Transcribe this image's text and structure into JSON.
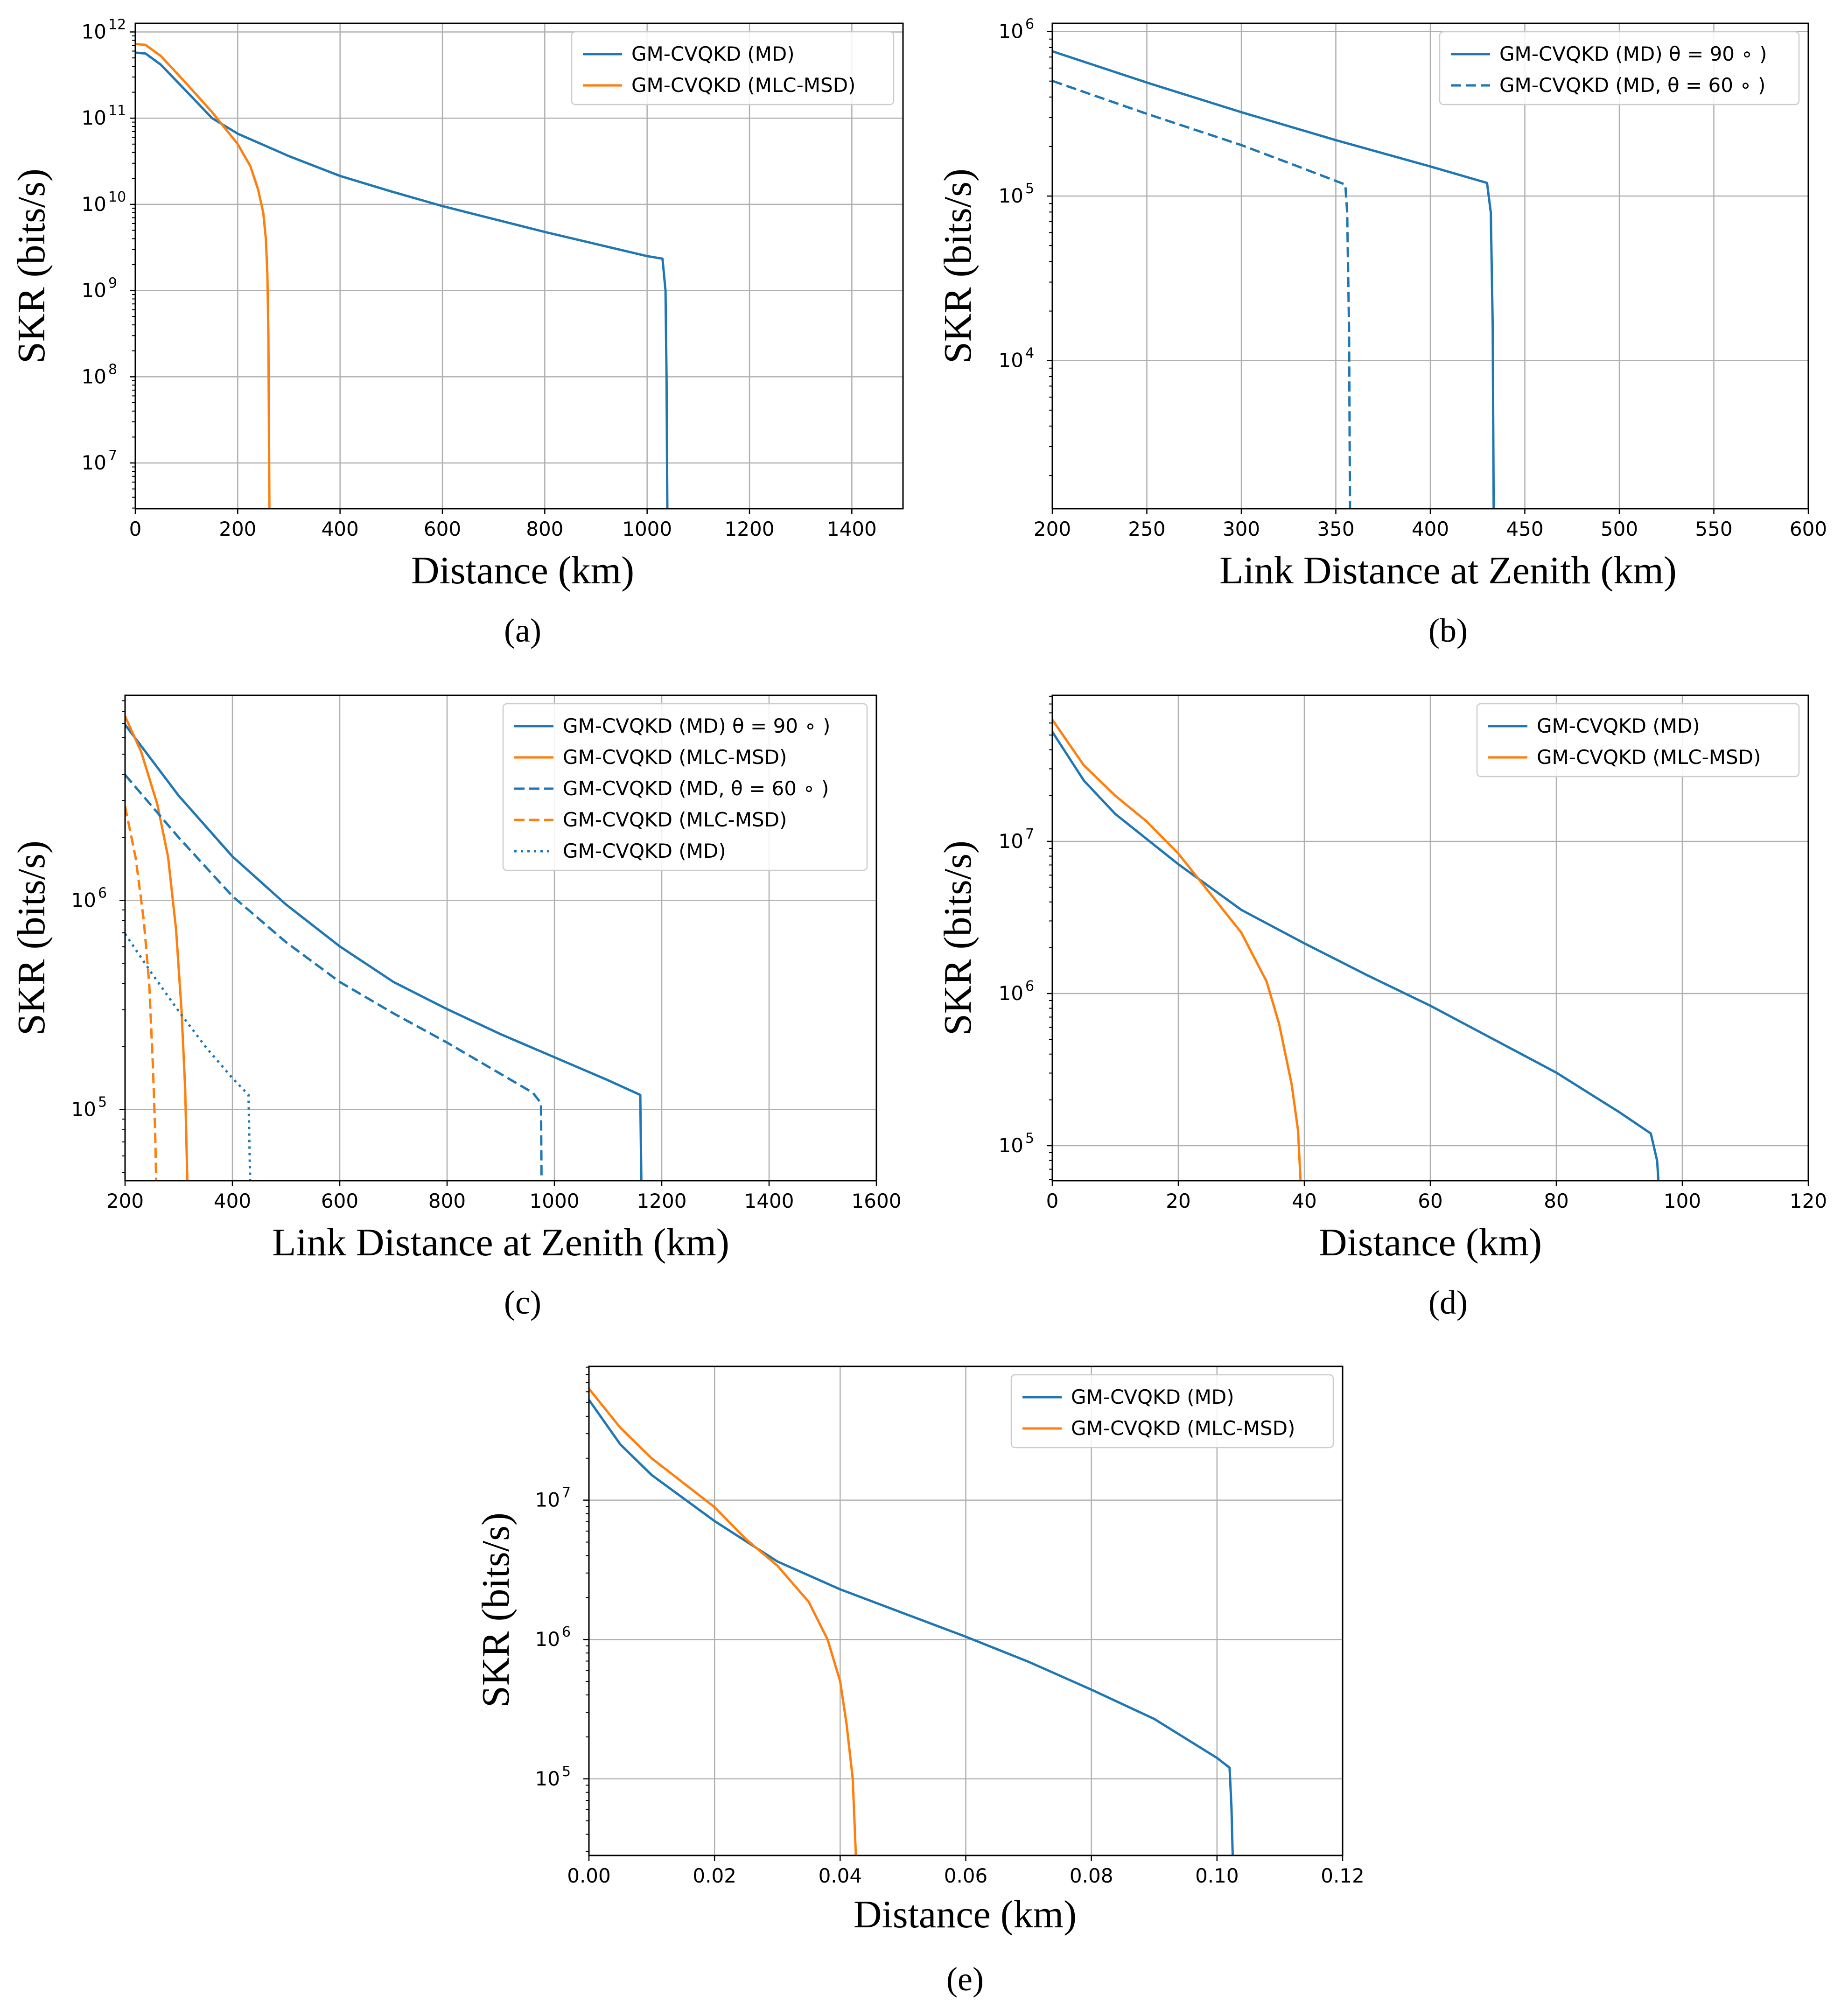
{
  "colors": {
    "md": "#1f77b4",
    "mlc": "#ff7f0e",
    "grid": "#b0b0b0",
    "frame": "#000000"
  },
  "chart_data": [
    {
      "caption": "(a)",
      "type": "line",
      "xlabel": "Distance (km)",
      "ylabel": "SKR (bits/s)",
      "xscale": "linear",
      "yscale": "log",
      "xlim": [
        0,
        1500
      ],
      "ylim_log10": [
        6.47,
        12.1
      ],
      "xticks": [
        0,
        200,
        400,
        600,
        800,
        1000,
        1200,
        1400
      ],
      "yticks_exp": [
        7,
        8,
        9,
        10,
        11,
        12
      ],
      "grid": true,
      "legend_position": "upper right",
      "legend": [
        "GM-CVQKD (MD)",
        "GM-CVQKD (MLC-MSD)"
      ],
      "series": [
        {
          "name": "GM-CVQKD (MD)",
          "color": "md",
          "dash": "solid",
          "points": [
            [
              0,
              11.76
            ],
            [
              20,
              11.75
            ],
            [
              50,
              11.62
            ],
            [
              100,
              11.31
            ],
            [
              150,
              11.0
            ],
            [
              200,
              10.82
            ],
            [
              300,
              10.56
            ],
            [
              400,
              10.33
            ],
            [
              500,
              10.15
            ],
            [
              600,
              9.98
            ],
            [
              700,
              9.83
            ],
            [
              800,
              9.68
            ],
            [
              900,
              9.54
            ],
            [
              1000,
              9.4
            ],
            [
              1030,
              9.37
            ],
            [
              1036,
              9.0
            ],
            [
              1038,
              8.0
            ],
            [
              1039,
              7.0
            ],
            [
              1039.5,
              6.47
            ]
          ]
        },
        {
          "name": "GM-CVQKD (MLC-MSD)",
          "color": "mlc",
          "dash": "solid",
          "points": [
            [
              0,
              11.86
            ],
            [
              20,
              11.85
            ],
            [
              50,
              11.72
            ],
            [
              100,
              11.4
            ],
            [
              150,
              11.07
            ],
            [
              200,
              10.7
            ],
            [
              225,
              10.44
            ],
            [
              240,
              10.17
            ],
            [
              250,
              9.9
            ],
            [
              255,
              9.6
            ],
            [
              258,
              9.2
            ],
            [
              260,
              8.5
            ],
            [
              261,
              7.5
            ],
            [
              262,
              6.47
            ]
          ]
        }
      ]
    },
    {
      "caption": "(b)",
      "type": "line",
      "xlabel": "Link Distance at Zenith (km)",
      "ylabel": "SKR (bits/s)",
      "xscale": "linear",
      "yscale": "log",
      "xlim": [
        200,
        600
      ],
      "ylim_log10": [
        3.1,
        6.05
      ],
      "xticks": [
        200,
        250,
        300,
        350,
        400,
        450,
        500,
        550,
        600
      ],
      "yticks_exp": [
        4,
        5,
        6
      ],
      "grid": true,
      "legend_position": "upper right",
      "legend": [
        "GM-CVQKD (MD) θ = 90 ∘ )",
        "GM-CVQKD (MD, θ = 60 ∘ )"
      ],
      "series": [
        {
          "name": "GM-CVQKD (MD) θ = 90 ∘ )",
          "color": "md",
          "dash": "solid",
          "points": [
            [
              200,
              5.88
            ],
            [
              250,
              5.69
            ],
            [
              300,
              5.51
            ],
            [
              350,
              5.34
            ],
            [
              400,
              5.18
            ],
            [
              430,
              5.08
            ],
            [
              432,
              4.9
            ],
            [
              433,
              4.2
            ],
            [
              433.5,
              3.1
            ]
          ]
        },
        {
          "name": "GM-CVQKD (MD, θ = 60 ∘ )",
          "color": "md",
          "dash": "dashed",
          "points": [
            [
              200,
              5.7
            ],
            [
              250,
              5.5
            ],
            [
              300,
              5.31
            ],
            [
              330,
              5.18
            ],
            [
              355,
              5.07
            ],
            [
              356,
              4.9
            ],
            [
              357,
              4.2
            ],
            [
              357.5,
              3.1
            ]
          ]
        }
      ]
    },
    {
      "caption": "(c)",
      "type": "line",
      "xlabel": "Link Distance at Zenith (km)",
      "ylabel": "SKR (bits/s)",
      "xscale": "linear",
      "yscale": "log",
      "xlim": [
        200,
        1600
      ],
      "ylim_log10": [
        4.66,
        6.98
      ],
      "xticks": [
        200,
        400,
        600,
        800,
        1000,
        1200,
        1400,
        1600
      ],
      "yticks_exp": [
        5,
        6
      ],
      "grid": true,
      "legend_position": "upper right",
      "legend": [
        "GM-CVQKD (MD) θ = 90 ∘ )",
        "GM-CVQKD (MLC-MSD)",
        "GM-CVQKD (MD, θ = 60 ∘ )",
        "GM-CVQKD (MLC-MSD)",
        "GM-CVQKD (MD)"
      ],
      "series": [
        {
          "name": "GM-CVQKD (MD) θ = 90 ∘ )",
          "color": "md",
          "dash": "solid",
          "points": [
            [
              200,
              6.84
            ],
            [
              300,
              6.5
            ],
            [
              400,
              6.21
            ],
            [
              500,
              5.98
            ],
            [
              600,
              5.78
            ],
            [
              700,
              5.61
            ],
            [
              800,
              5.48
            ],
            [
              900,
              5.36
            ],
            [
              1000,
              5.25
            ],
            [
              1100,
              5.14
            ],
            [
              1160,
              5.07
            ],
            [
              1162,
              4.66
            ]
          ]
        },
        {
          "name": "GM-CVQKD (MLC-MSD)",
          "color": "mlc",
          "dash": "solid",
          "points": [
            [
              200,
              6.88
            ],
            [
              230,
              6.71
            ],
            [
              260,
              6.46
            ],
            [
              280,
              6.21
            ],
            [
              295,
              5.86
            ],
            [
              305,
              5.48
            ],
            [
              312,
              5.1
            ],
            [
              316,
              4.66
            ]
          ]
        },
        {
          "name": "GM-CVQKD (MD, θ = 60 ∘ )",
          "color": "md",
          "dash": "dashed",
          "points": [
            [
              200,
              6.6
            ],
            [
              300,
              6.3
            ],
            [
              400,
              6.02
            ],
            [
              500,
              5.8
            ],
            [
              600,
              5.61
            ],
            [
              700,
              5.46
            ],
            [
              800,
              5.32
            ],
            [
              900,
              5.17
            ],
            [
              960,
              5.08
            ],
            [
              975,
              5.03
            ],
            [
              976,
              4.66
            ]
          ]
        },
        {
          "name": "GM-CVQKD (MLC-MSD)",
          "color": "mlc",
          "dash": "dashed",
          "points": [
            [
              200,
              6.45
            ],
            [
              220,
              6.2
            ],
            [
              235,
              5.9
            ],
            [
              245,
              5.6
            ],
            [
              252,
              5.2
            ],
            [
              256,
              4.9
            ],
            [
              258,
              4.66
            ]
          ]
        },
        {
          "name": "GM-CVQKD (MD)",
          "color": "md",
          "dash": "dotted",
          "points": [
            [
              200,
              5.84
            ],
            [
              250,
              5.65
            ],
            [
              300,
              5.47
            ],
            [
              350,
              5.3
            ],
            [
              400,
              5.15
            ],
            [
              430,
              5.07
            ],
            [
              433,
              4.66
            ]
          ]
        }
      ]
    },
    {
      "caption": "(d)",
      "type": "line",
      "xlabel": "Distance (km)",
      "ylabel": "SKR (bits/s)",
      "xscale": "linear",
      "yscale": "log",
      "xlim": [
        0,
        120
      ],
      "ylim_log10": [
        4.77,
        7.96
      ],
      "xticks": [
        0,
        20,
        40,
        60,
        80,
        100,
        120
      ],
      "yticks_exp": [
        5,
        6,
        7
      ],
      "grid": true,
      "legend_position": "upper right",
      "legend": [
        "GM-CVQKD (MD)",
        "GM-CVQKD (MLC-MSD)"
      ],
      "series": [
        {
          "name": "GM-CVQKD (MD)",
          "color": "md",
          "dash": "solid",
          "points": [
            [
              0,
              7.72
            ],
            [
              5,
              7.4
            ],
            [
              10,
              7.18
            ],
            [
              20,
              6.85
            ],
            [
              30,
              6.55
            ],
            [
              40,
              6.33
            ],
            [
              50,
              6.12
            ],
            [
              60,
              5.92
            ],
            [
              70,
              5.7
            ],
            [
              80,
              5.48
            ],
            [
              90,
              5.22
            ],
            [
              95,
              5.08
            ],
            [
              96,
              4.9
            ],
            [
              96.2,
              4.77
            ]
          ]
        },
        {
          "name": "GM-CVQKD (MLC-MSD)",
          "color": "mlc",
          "dash": "solid",
          "points": [
            [
              0,
              7.8
            ],
            [
              5,
              7.5
            ],
            [
              10,
              7.3
            ],
            [
              15,
              7.13
            ],
            [
              20,
              6.92
            ],
            [
              25,
              6.66
            ],
            [
              30,
              6.4
            ],
            [
              34,
              6.08
            ],
            [
              36,
              5.8
            ],
            [
              38,
              5.4
            ],
            [
              39,
              5.1
            ],
            [
              39.4,
              4.77
            ]
          ]
        }
      ]
    },
    {
      "caption": "(e)",
      "type": "line",
      "xlabel": "Distance (km)",
      "ylabel": "SKR (bits/s)",
      "xscale": "linear",
      "yscale": "log",
      "xlim": [
        0,
        0.12
      ],
      "ylim_log10": [
        4.45,
        7.96
      ],
      "xticks": [
        "0.00",
        "0.02",
        "0.04",
        "0.06",
        "0.08",
        "0.10",
        "0.12"
      ],
      "yticks_exp": [
        5,
        6,
        7
      ],
      "grid": true,
      "legend_position": "upper right",
      "legend": [
        "GM-CVQKD (MD)",
        "GM-CVQKD (MLC-MSD)"
      ],
      "series": [
        {
          "name": "GM-CVQKD (MD)",
          "color": "md",
          "dash": "solid",
          "points": [
            [
              0,
              7.72
            ],
            [
              0.005,
              7.4
            ],
            [
              0.01,
              7.18
            ],
            [
              0.02,
              6.85
            ],
            [
              0.03,
              6.56
            ],
            [
              0.04,
              6.36
            ],
            [
              0.05,
              6.19
            ],
            [
              0.06,
              6.02
            ],
            [
              0.07,
              5.84
            ],
            [
              0.08,
              5.64
            ],
            [
              0.09,
              5.43
            ],
            [
              0.1,
              5.15
            ],
            [
              0.102,
              5.08
            ],
            [
              0.1023,
              4.8
            ],
            [
              0.1025,
              4.45
            ]
          ]
        },
        {
          "name": "GM-CVQKD (MLC-MSD)",
          "color": "mlc",
          "dash": "solid",
          "points": [
            [
              0,
              7.8
            ],
            [
              0.005,
              7.52
            ],
            [
              0.01,
              7.3
            ],
            [
              0.02,
              6.95
            ],
            [
              0.025,
              6.72
            ],
            [
              0.03,
              6.53
            ],
            [
              0.035,
              6.27
            ],
            [
              0.038,
              6.0
            ],
            [
              0.04,
              5.7
            ],
            [
              0.041,
              5.4
            ],
            [
              0.042,
              5.0
            ],
            [
              0.0425,
              4.45
            ]
          ]
        }
      ]
    }
  ]
}
